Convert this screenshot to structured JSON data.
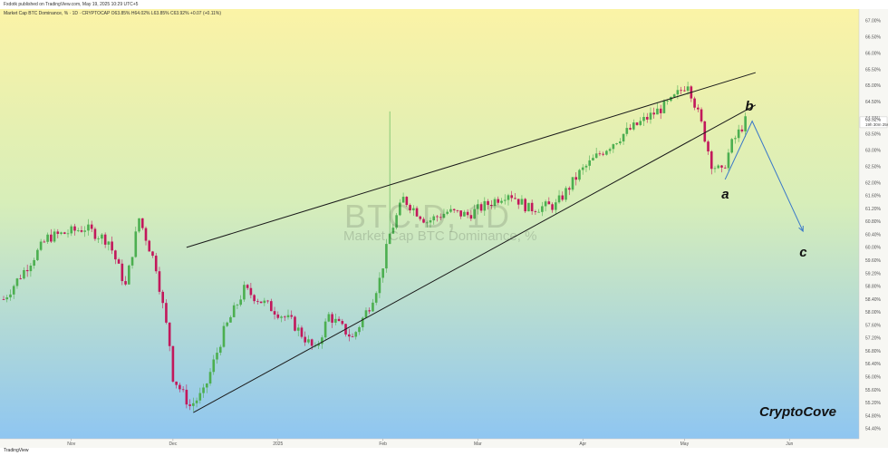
{
  "header": {
    "publisher": "Fxdotk published on TradingView.com, May 19, 2025 10:29 UTC+5",
    "symbol_line": "Market Cap BTC Dominance, % · 1D · CRYPTOCAP O63.85% H64.02% L63.85% C63.92% +0.07 (+0.11%)"
  },
  "footer": {
    "logo": "TradingView"
  },
  "watermark": {
    "symbol": "BTC.D, 1D",
    "name": "Market Cap BTC Dominance, %"
  },
  "brand": "CryptoCove",
  "colors": {
    "up_candle": "#4caf50",
    "down_candle": "#c2185b",
    "trendline": "#1a1a1a",
    "projection": "#3a78c9",
    "bg_top": "#fbf3a6",
    "bg_bottom": "#8fc6f1"
  },
  "chart_data": {
    "type": "candlestick",
    "title": "",
    "xlabel": "",
    "ylabel": "",
    "ylim": [
      54.2,
      67.25
    ],
    "y_ticks": [
      "67.00%",
      "66.50%",
      "66.00%",
      "65.50%",
      "65.00%",
      "64.50%",
      "64.00%",
      "63.50%",
      "63.00%",
      "62.50%",
      "62.00%",
      "61.60%",
      "61.20%",
      "60.80%",
      "60.40%",
      "60.00%",
      "59.60%",
      "59.20%",
      "58.80%",
      "58.40%",
      "58.00%",
      "57.60%",
      "57.20%",
      "56.80%",
      "56.40%",
      "56.00%",
      "55.60%",
      "55.20%",
      "54.80%",
      "54.40%"
    ],
    "y_tick_values": [
      67.0,
      66.5,
      66.0,
      65.5,
      65.0,
      64.5,
      64.0,
      63.5,
      63.0,
      62.5,
      62.0,
      61.6,
      61.2,
      60.8,
      60.4,
      60.0,
      59.6,
      59.2,
      58.8,
      58.4,
      58.0,
      57.6,
      57.2,
      56.8,
      56.4,
      56.0,
      55.6,
      55.2,
      54.8,
      54.4
    ],
    "x_ticks": [
      {
        "label": "Nov",
        "date": "2024-11-01"
      },
      {
        "label": "Dec",
        "date": "2024-12-01"
      },
      {
        "label": "2025",
        "date": "2025-01-01"
      },
      {
        "label": "Feb",
        "date": "2025-02-01"
      },
      {
        "label": "Mar",
        "date": "2025-03-01"
      },
      {
        "label": "Apr",
        "date": "2025-04-01"
      },
      {
        "label": "May",
        "date": "2025-05-01"
      },
      {
        "label": "Jun",
        "date": "2025-06-01"
      }
    ],
    "x_range": [
      "2024-10-12",
      "2025-06-21"
    ],
    "last_price": "63.92%",
    "countdown": "19h 30m 25s",
    "key_points": [
      {
        "date": "2024-10-12",
        "close": 58.4
      },
      {
        "date": "2024-10-25",
        "close": 60.3
      },
      {
        "date": "2024-11-05",
        "close": 60.6
      },
      {
        "date": "2024-11-12",
        "close": 60.2
      },
      {
        "date": "2024-11-17",
        "close": 58.8
      },
      {
        "date": "2024-11-21",
        "close": 60.9
      },
      {
        "date": "2024-11-26",
        "close": 59.4
      },
      {
        "date": "2024-11-30",
        "close": 57.0
      },
      {
        "date": "2024-12-01",
        "close": 56.0
      },
      {
        "date": "2024-12-06",
        "close": 55.1
      },
      {
        "date": "2024-12-10",
        "close": 55.5
      },
      {
        "date": "2024-12-16",
        "close": 57.4
      },
      {
        "date": "2024-12-22",
        "close": 58.7
      },
      {
        "date": "2024-12-29",
        "close": 58.2
      },
      {
        "date": "2025-01-05",
        "close": 57.7
      },
      {
        "date": "2025-01-12",
        "close": 56.8
      },
      {
        "date": "2025-01-16",
        "close": 57.9
      },
      {
        "date": "2025-01-23",
        "close": 57.2
      },
      {
        "date": "2025-01-28",
        "close": 58.2
      },
      {
        "date": "2025-01-31",
        "close": 59.0
      },
      {
        "date": "2025-02-03",
        "close": 60.4
      },
      {
        "date": "2025-02-07",
        "close": 61.5
      },
      {
        "date": "2025-02-14",
        "close": 60.8
      },
      {
        "date": "2025-02-20",
        "close": 61.1
      },
      {
        "date": "2025-02-26",
        "close": 61.0
      },
      {
        "date": "2025-03-05",
        "close": 61.4
      },
      {
        "date": "2025-03-10",
        "close": 61.7
      },
      {
        "date": "2025-03-16",
        "close": 61.2
      },
      {
        "date": "2025-03-24",
        "close": 61.3
      },
      {
        "date": "2025-03-31",
        "close": 62.3
      },
      {
        "date": "2025-04-06",
        "close": 62.9
      },
      {
        "date": "2025-04-13",
        "close": 63.5
      },
      {
        "date": "2025-04-20",
        "close": 64.0
      },
      {
        "date": "2025-04-27",
        "close": 64.5
      },
      {
        "date": "2025-05-02",
        "close": 65.1
      },
      {
        "date": "2025-05-06",
        "close": 63.8
      },
      {
        "date": "2025-05-09",
        "close": 62.6
      },
      {
        "date": "2025-05-12",
        "close": 62.3
      },
      {
        "date": "2025-05-15",
        "close": 63.2
      },
      {
        "date": "2025-05-19",
        "close": 63.9
      }
    ],
    "spikes": [
      {
        "date": "2025-02-03",
        "high": 64.2
      }
    ],
    "annotations": {
      "trendlines": [
        {
          "from": {
            "date": "2024-12-05",
            "value": 60.0
          },
          "to": {
            "date": "2025-05-22",
            "value": 65.4
          }
        },
        {
          "from": {
            "date": "2024-12-07",
            "value": 54.9
          },
          "to": {
            "date": "2025-05-22",
            "value": 64.4
          }
        }
      ],
      "projection": [
        {
          "date": "2025-05-13",
          "value": 62.1
        },
        {
          "date": "2025-05-21",
          "value": 63.9
        },
        {
          "date": "2025-06-05",
          "value": 60.5
        }
      ],
      "wave_labels": [
        {
          "text": "a",
          "date": "2025-05-13",
          "value": 61.6
        },
        {
          "text": "b",
          "date": "2025-05-20",
          "value": 64.3
        },
        {
          "text": "c",
          "date": "2025-06-05",
          "value": 59.8
        }
      ]
    }
  }
}
